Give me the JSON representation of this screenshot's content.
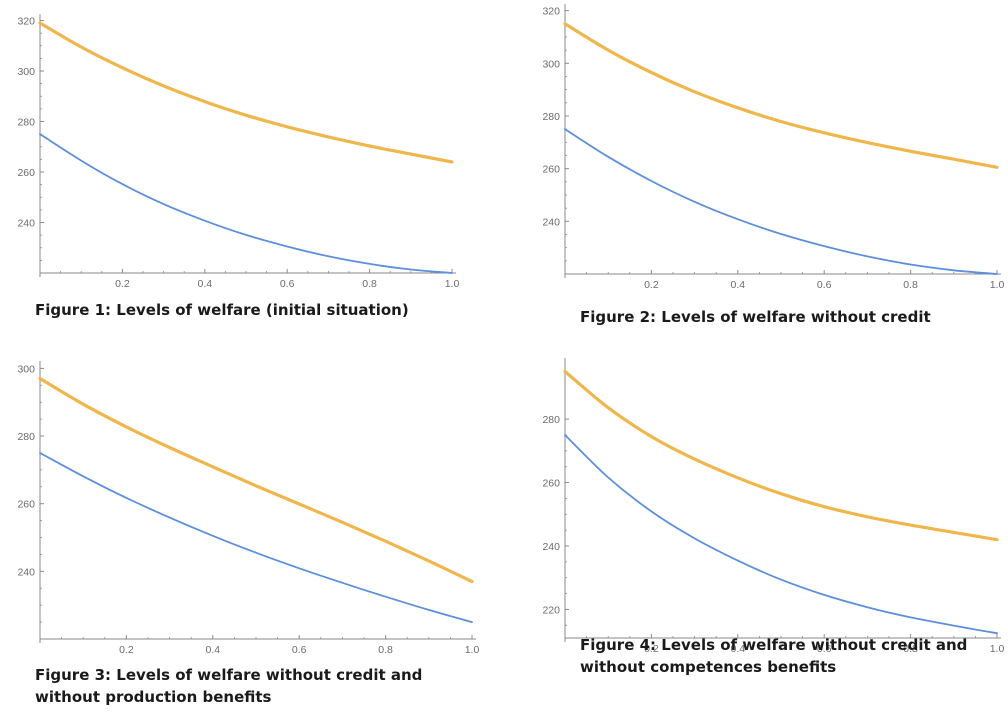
{
  "colors": {
    "series_a": "#efb64c",
    "series_b": "#5c8fdc",
    "axis": "#8a8a8a",
    "tick_text": "#6b6b6b"
  },
  "captions": [
    [
      "Figure 1: Levels of welfare (initial situation)"
    ],
    [
      "Figure 2: Levels of welfare without credit"
    ],
    [
      "Figure 3: Levels of welfare without credit and",
      "without production benefits"
    ],
    [
      "Figure 4: Levels of welfare without credit and",
      "without competences benefits"
    ]
  ],
  "chart_data": [
    {
      "type": "line",
      "xlim": [
        0,
        1
      ],
      "ylim": [
        220,
        321
      ],
      "xticks": [
        "0.2",
        "0.4",
        "0.6",
        "0.8",
        "1.0"
      ],
      "yticks": [
        "240",
        "260",
        "280",
        "300",
        "320"
      ],
      "x": [
        0,
        0.1,
        0.2,
        0.3,
        0.4,
        0.5,
        0.6,
        0.7,
        0.8,
        0.9,
        1.0
      ],
      "series": [
        {
          "values": [
            319,
            309.5,
            301.3,
            294.1,
            287.9,
            282.5,
            277.9,
            273.9,
            270.3,
            267.1,
            264
          ]
        },
        {
          "values": [
            275,
            264.5,
            255.2,
            247.3,
            240.7,
            235.1,
            230.5,
            226.6,
            223.6,
            221.4,
            220
          ]
        }
      ]
    },
    {
      "type": "line",
      "xlim": [
        0,
        1
      ],
      "ylim": [
        220,
        321
      ],
      "xticks": [
        "0.2",
        "0.4",
        "0.6",
        "0.8",
        "1.0"
      ],
      "yticks": [
        "240",
        "260",
        "280",
        "300",
        "320"
      ],
      "x": [
        0,
        0.1,
        0.2,
        0.3,
        0.4,
        0.5,
        0.6,
        0.7,
        0.8,
        0.9,
        1.0
      ],
      "series": [
        {
          "values": [
            315,
            305,
            296.5,
            289.2,
            283.1,
            277.9,
            273.6,
            269.9,
            266.6,
            263.6,
            260.5
          ]
        },
        {
          "values": [
            275,
            264.5,
            255.3,
            247.4,
            240.8,
            235.2,
            230.6,
            226.7,
            223.6,
            221.4,
            220
          ]
        }
      ]
    },
    {
      "type": "line",
      "xlim": [
        0,
        1
      ],
      "ylim": [
        220,
        301
      ],
      "xticks": [
        "0.2",
        "0.4",
        "0.6",
        "0.8",
        "1.0"
      ],
      "yticks": [
        "240",
        "260",
        "280",
        "300"
      ],
      "x": [
        0,
        0.1,
        0.2,
        0.3,
        0.4,
        0.5,
        0.6,
        0.7,
        0.8,
        0.9,
        1.0
      ],
      "series": [
        {
          "values": [
            297,
            289.4,
            282.7,
            276.6,
            270.9,
            265.3,
            259.9,
            254.5,
            248.9,
            243.1,
            237
          ]
        },
        {
          "values": [
            275,
            268.1,
            261.7,
            255.9,
            250.5,
            245.5,
            240.9,
            236.6,
            232.5,
            228.6,
            225
          ]
        }
      ]
    },
    {
      "type": "line",
      "xlim": [
        0,
        1
      ],
      "ylim": [
        211,
        298
      ],
      "xticks": [
        "0.2",
        "0.4",
        "0.6",
        "0.8",
        "1.0"
      ],
      "yticks": [
        "220",
        "240",
        "260",
        "280"
      ],
      "x": [
        0,
        0.1,
        0.2,
        0.3,
        0.4,
        0.5,
        0.6,
        0.7,
        0.8,
        0.9,
        1.0
      ],
      "series": [
        {
          "values": [
            295,
            283.6,
            274.5,
            267.4,
            261.5,
            256.5,
            252.4,
            249.2,
            246.6,
            244.3,
            242
          ]
        },
        {
          "values": [
            275,
            261.6,
            250.9,
            242.4,
            235.4,
            229.4,
            224.6,
            220.7,
            217.5,
            214.9,
            212.5
          ]
        }
      ]
    }
  ]
}
